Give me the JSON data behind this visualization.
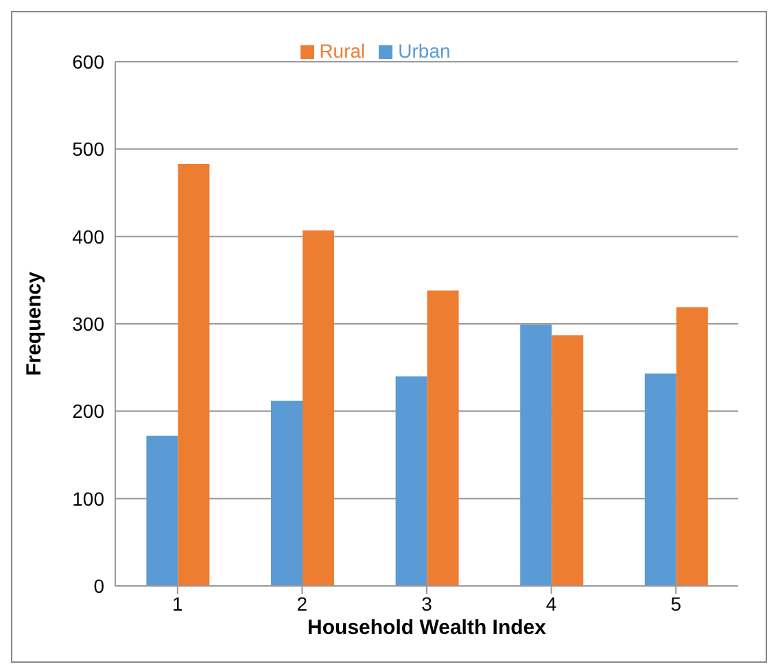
{
  "chart_data": {
    "type": "bar",
    "xlabel": "Household Wealth Index",
    "ylabel": "Frequency",
    "categories": [
      "1",
      "2",
      "3",
      "4",
      "5"
    ],
    "series": [
      {
        "name": "Urban",
        "color": "#5b9bd5",
        "values": [
          172,
          212,
          240,
          299,
          243
        ]
      },
      {
        "name": "Rural",
        "color": "#ed7d31",
        "values": [
          483,
          407,
          338,
          287,
          319
        ]
      }
    ],
    "ylim": [
      0,
      600
    ],
    "yticks": [
      0,
      100,
      200,
      300,
      400,
      500,
      600
    ],
    "grid": "y",
    "legend": "top"
  }
}
